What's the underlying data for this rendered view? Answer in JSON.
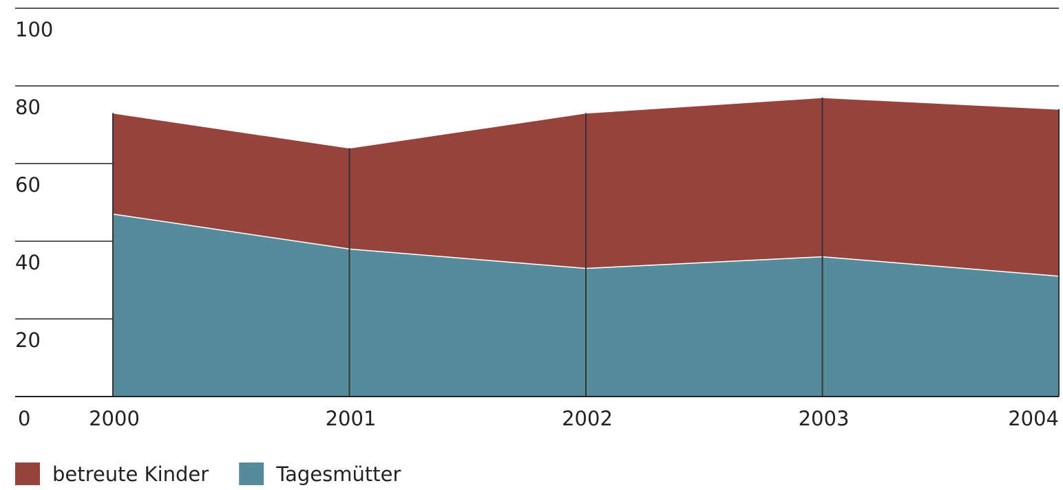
{
  "chart_data": {
    "type": "area",
    "stacked": true,
    "categories": [
      "2000",
      "2001",
      "2002",
      "2003",
      "2004"
    ],
    "series": [
      {
        "name": "Tagesmütter",
        "color": "#568b9c",
        "values": [
          47,
          38,
          33,
          36,
          31
        ]
      },
      {
        "name": "betreute Kinder",
        "color": "#96433d",
        "values": [
          26,
          26,
          40,
          41,
          43
        ]
      }
    ],
    "ylim": [
      0,
      100
    ],
    "yticks": [
      0,
      20,
      40,
      60,
      80,
      100
    ],
    "grid": true,
    "legend": "bottom-left"
  }
}
